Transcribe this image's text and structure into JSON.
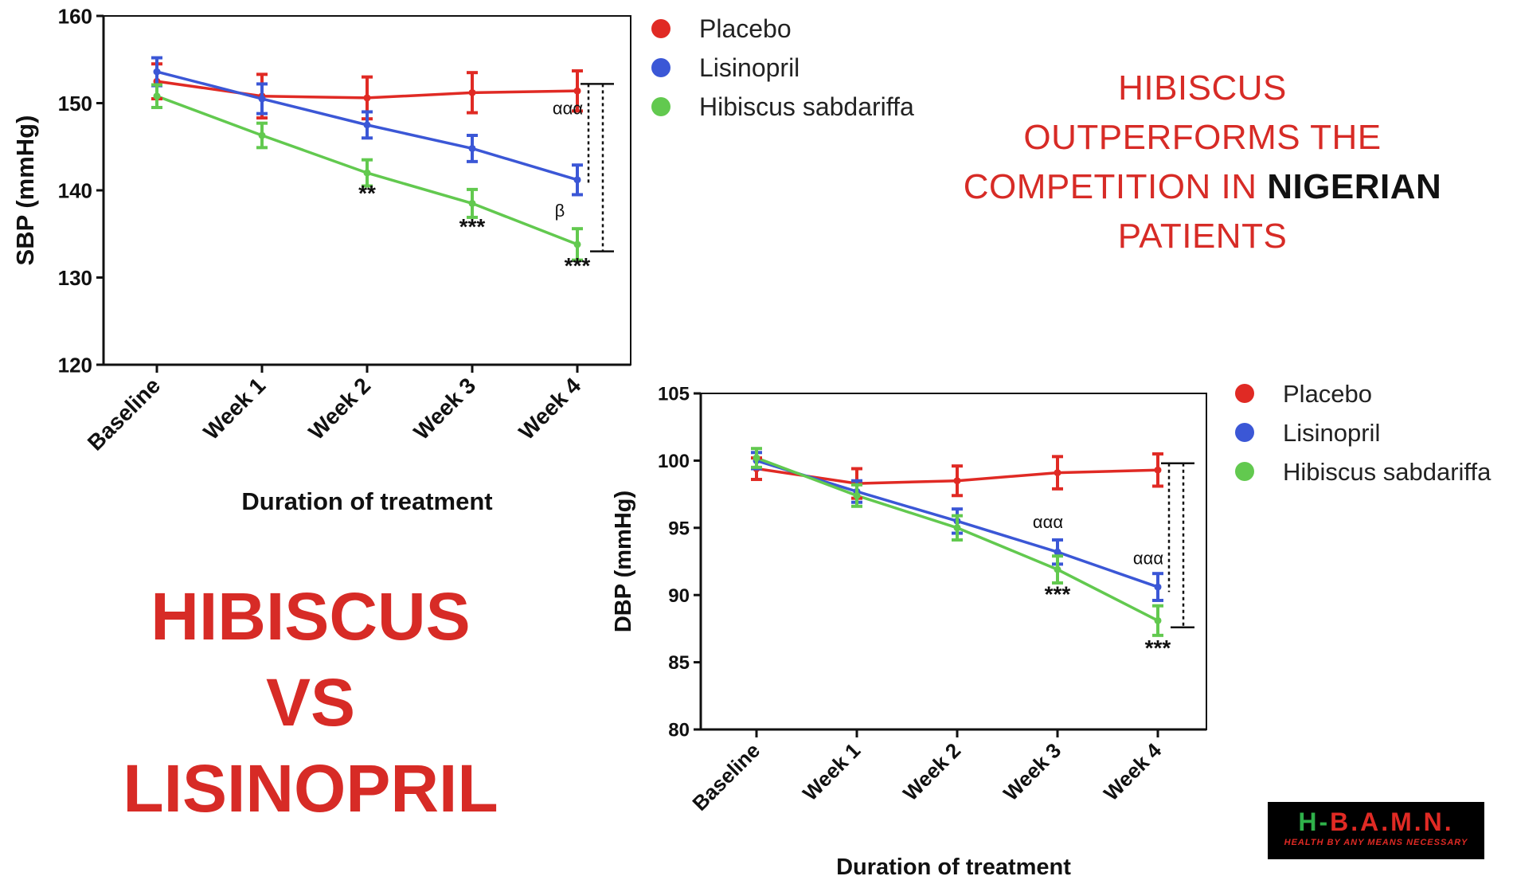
{
  "headline": {
    "line1": "HIBISCUS",
    "line2": "OUTPERFORMS THE",
    "line3_prefix": "COMPETITION IN ",
    "line3_emphasis": "NIGERIAN",
    "line4": "PATIENTS"
  },
  "big_title": {
    "line1": "HIBISCUS",
    "line2": "VS",
    "line3": "LISINOPRIL"
  },
  "logo": {
    "mark_h": "H",
    "mark_dash": "-",
    "mark_rest": "B.A.M.N.",
    "tagline": "HEALTH BY ANY MEANS NECESSARY"
  },
  "colors": {
    "placebo": "#e02a24",
    "lisinopril": "#3b57d6",
    "hibiscus": "#62c94f",
    "headline_red": "#d72b26"
  },
  "chart_data": [
    {
      "type": "line",
      "ylabel": "SBP (mmHg)",
      "xlabel": "Duration of treatment",
      "categories": [
        "Baseline",
        "Week 1",
        "Week 2",
        "Week 3",
        "Week 4"
      ],
      "ylim": [
        120,
        160
      ],
      "yticks": [
        120,
        130,
        140,
        150,
        160
      ],
      "legend_position": "right",
      "series": [
        {
          "name": "Placebo",
          "color": "#e02a24",
          "values": [
            152.5,
            150.8,
            150.6,
            151.2,
            151.4
          ],
          "errors": [
            2.0,
            2.5,
            2.4,
            2.3,
            2.3
          ]
        },
        {
          "name": "Lisinopril",
          "color": "#3b57d6",
          "values": [
            153.6,
            150.5,
            147.5,
            144.8,
            141.2
          ],
          "errors": [
            1.6,
            1.7,
            1.5,
            1.5,
            1.7
          ]
        },
        {
          "name": "Hibiscus sabdariffa",
          "color": "#62c94f",
          "values": [
            150.8,
            146.3,
            142.0,
            138.5,
            133.8
          ],
          "errors": [
            1.3,
            1.4,
            1.5,
            1.6,
            1.8
          ]
        }
      ],
      "annotations": [
        {
          "text": "**",
          "category": "Week 2",
          "y": 138.8
        },
        {
          "text": "***",
          "category": "Week 3",
          "y": 135.0
        },
        {
          "text": "***",
          "category": "Week 4",
          "y": 130.5
        },
        {
          "text": "ααα",
          "category": "Week 4",
          "y": 148.7
        },
        {
          "text": "β",
          "category": "Week 4",
          "y": 137.0
        }
      ]
    },
    {
      "type": "line",
      "ylabel": "DBP (mmHg)",
      "xlabel": "Duration of treatment",
      "categories": [
        "Baseline",
        "Week 1",
        "Week 2",
        "Week 3",
        "Week 4"
      ],
      "ylim": [
        80,
        105
      ],
      "yticks": [
        80,
        85,
        90,
        95,
        100,
        105
      ],
      "legend_position": "right",
      "series": [
        {
          "name": "Placebo",
          "color": "#e02a24",
          "values": [
            99.4,
            98.3,
            98.5,
            99.1,
            99.3
          ],
          "errors": [
            0.8,
            1.1,
            1.1,
            1.2,
            1.2
          ]
        },
        {
          "name": "Lisinopril",
          "color": "#3b57d6",
          "values": [
            100.0,
            97.7,
            95.5,
            93.2,
            90.6
          ],
          "errors": [
            0.6,
            0.8,
            0.9,
            0.9,
            1.0
          ]
        },
        {
          "name": "Hibiscus sabdariffa",
          "color": "#62c94f",
          "values": [
            100.2,
            97.4,
            95.0,
            91.9,
            88.1
          ],
          "errors": [
            0.7,
            0.8,
            0.9,
            1.0,
            1.1
          ]
        }
      ],
      "annotations": [
        {
          "text": "ααα",
          "category": "Week 3",
          "y": 95.0
        },
        {
          "text": "ααα",
          "category": "Week 4",
          "y": 92.3
        },
        {
          "text": "***",
          "category": "Week 3",
          "y": 89.5
        },
        {
          "text": "***",
          "category": "Week 4",
          "y": 85.5
        }
      ]
    }
  ]
}
